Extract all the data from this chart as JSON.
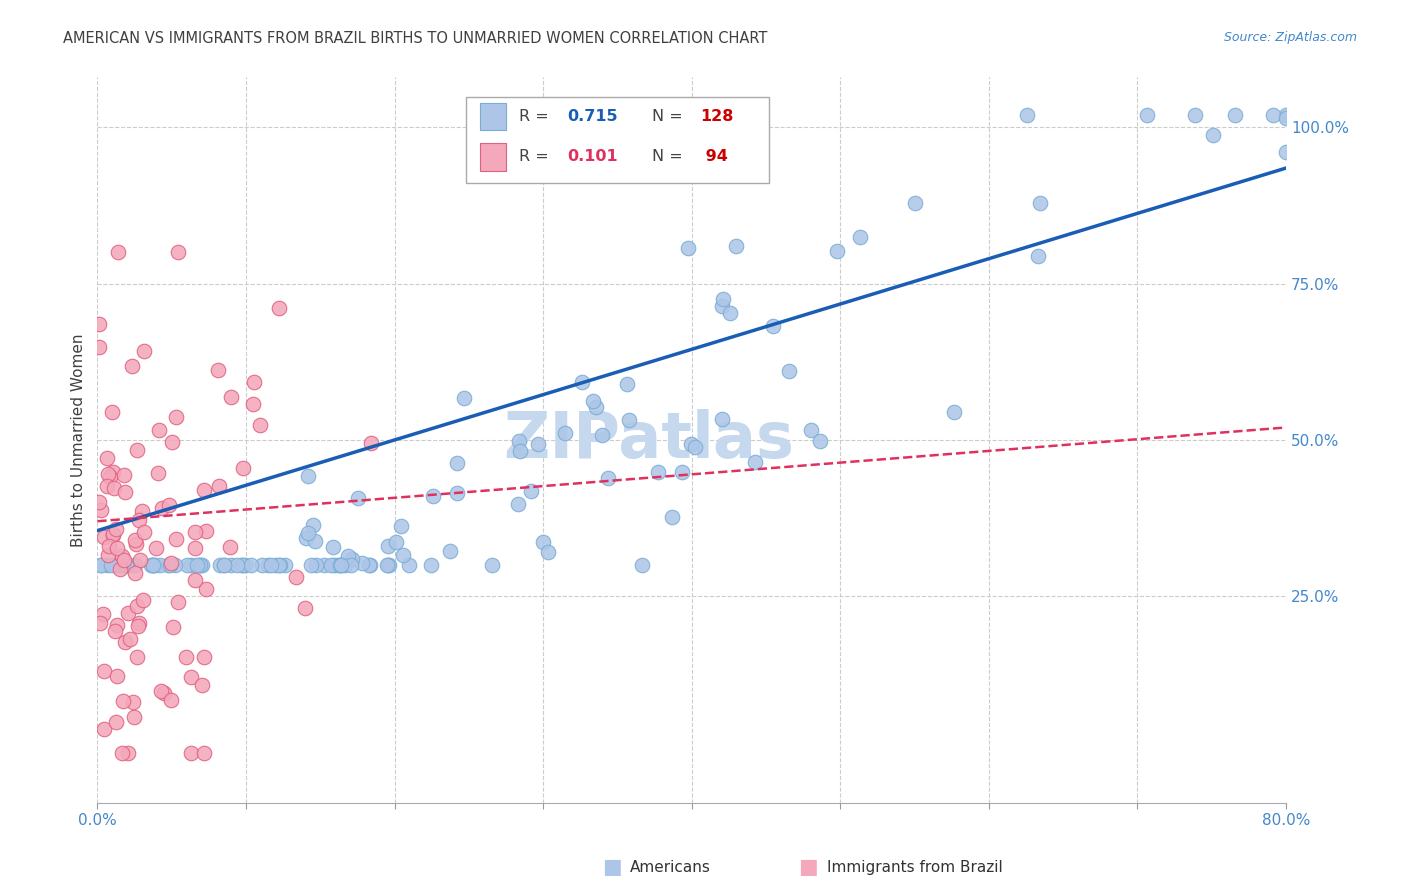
{
  "title": "AMERICAN VS IMMIGRANTS FROM BRAZIL BIRTHS TO UNMARRIED WOMEN CORRELATION CHART",
  "source": "Source: ZipAtlas.com",
  "ylabel": "Births to Unmarried Women",
  "series1_color": "#adc6e8",
  "series1_edge": "#7aadd4",
  "series2_color": "#f4a8bb",
  "series2_edge": "#e06080",
  "line1_color": "#1a5db5",
  "line2_color": "#e03060",
  "watermark_color": "#c5d8ee",
  "background_color": "#ffffff",
  "grid_color": "#cccccc",
  "title_color": "#404040",
  "axis_label_color": "#4488cc",
  "xmin": 0.0,
  "xmax": 0.8,
  "ymin": -0.08,
  "ymax": 1.08,
  "r1": 0.715,
  "n1": 128,
  "r2": 0.101,
  "n2": 94,
  "line1_x0": 0.0,
  "line1_y0": 0.355,
  "line1_x1": 0.8,
  "line1_y1": 0.935,
  "line2_x0": 0.0,
  "line2_y0": 0.37,
  "line2_x1": 0.8,
  "line2_y1": 0.52
}
